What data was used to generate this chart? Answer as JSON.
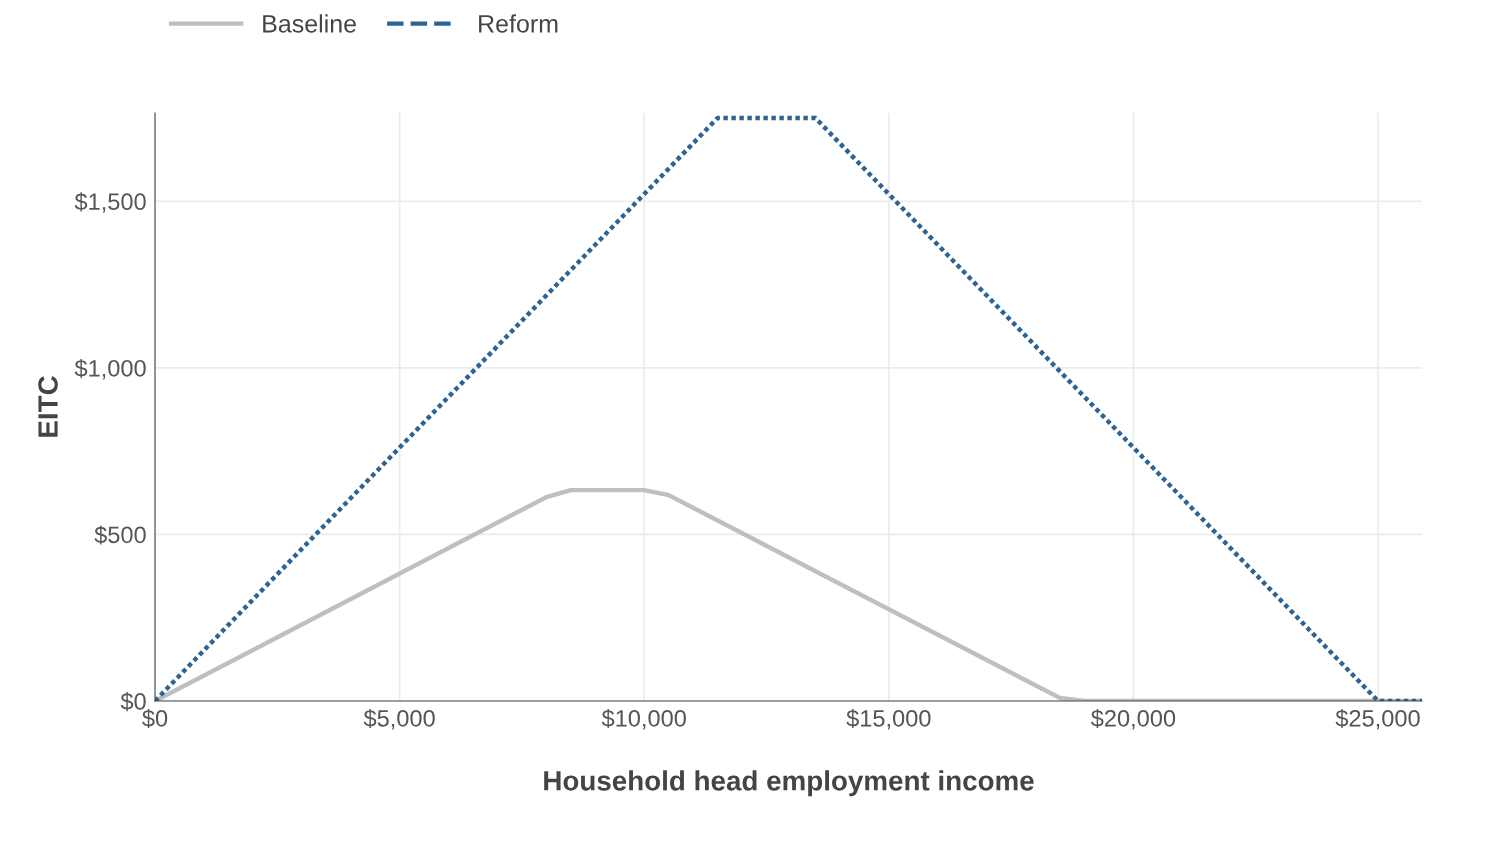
{
  "chart_data": {
    "type": "line",
    "xlabel": "Household head employment income",
    "ylabel": "EITC",
    "xlim": [
      0,
      25900
    ],
    "ylim": [
      0,
      1765
    ],
    "xticks": [
      {
        "value": 0,
        "label": "$0"
      },
      {
        "value": 5000,
        "label": "$5,000"
      },
      {
        "value": 10000,
        "label": "$10,000"
      },
      {
        "value": 15000,
        "label": "$15,000"
      },
      {
        "value": 20000,
        "label": "$20,000"
      },
      {
        "value": 25000,
        "label": "$25,000"
      }
    ],
    "yticks": [
      {
        "value": 0,
        "label": "$0"
      },
      {
        "value": 500,
        "label": "$500"
      },
      {
        "value": 1000,
        "label": "$1,000"
      },
      {
        "value": 1500,
        "label": "$1,500"
      }
    ],
    "grid": true,
    "legend": "top left",
    "series": [
      {
        "name": "Baseline",
        "color": "#bfbfbf",
        "line_style": "solid",
        "x": [
          0,
          8000,
          8500,
          10000,
          10500,
          18500,
          19000,
          25900
        ],
        "values": [
          0,
          612,
          633,
          633,
          618,
          9,
          0,
          0
        ]
      },
      {
        "name": "Reform",
        "color": "#2c6496",
        "line_style": "dotted",
        "x": [
          0,
          11500,
          13500,
          25000,
          25900
        ],
        "values": [
          0,
          1750,
          1750,
          0,
          0
        ]
      }
    ]
  }
}
